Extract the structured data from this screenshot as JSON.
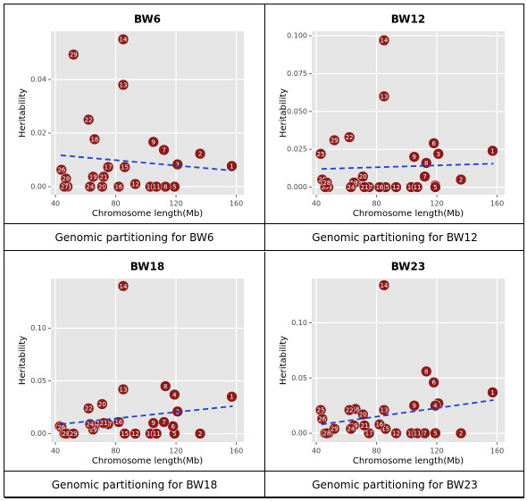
{
  "chart_data": [
    {
      "type": "scatter",
      "title": "BW6",
      "caption": "Genomic partitioning for BW6",
      "xlabel": "Chromosome length(Mb)",
      "ylabel": "Heritability",
      "color": "#8b1a1a",
      "trend_color": "#1f3fd6",
      "labels": [
        1,
        2,
        3,
        4,
        5,
        7,
        8,
        9,
        10,
        11,
        12,
        13,
        14,
        15,
        16,
        17,
        18,
        19,
        20,
        21,
        22,
        23,
        24,
        26,
        27,
        28,
        29
      ],
      "x": [
        157,
        136,
        121,
        119,
        119,
        112,
        113,
        105,
        103,
        107,
        93,
        85,
        85,
        86,
        82,
        75,
        66,
        65,
        71,
        72,
        62,
        48,
        63,
        44,
        46,
        47,
        52
      ],
      "y": [
        0.0077,
        0.0123,
        0.0083,
        0,
        0,
        0.0137,
        0,
        0.0167,
        0,
        0,
        0.001,
        0.038,
        0.055,
        0.0073,
        0,
        0.0073,
        0.0177,
        0.0037,
        0,
        0.0037,
        0.025,
        0,
        0,
        0.0063,
        0,
        0.003,
        0.0493
      ],
      "trend": {
        "x": [
          43.5,
          157.6
        ],
        "y": [
          0.0117,
          0.006
        ]
      },
      "xlim": [
        37,
        165
      ],
      "ylim": [
        -0.003,
        0.058
      ],
      "xticks": [
        40,
        80,
        120,
        160
      ],
      "yticks": [
        {
          "value": 0,
          "label": "0.00"
        },
        {
          "value": 0.02,
          "label": "0.02"
        },
        {
          "value": 0.04,
          "label": "0.04"
        }
      ]
    },
    {
      "type": "scatter",
      "title": "BW12",
      "caption": "Genomic partitioning for BW12",
      "xlabel": "Chromosome length(Mb)",
      "ylabel": "Heritability",
      "color": "#8b1a1a",
      "trend_color": "#1f3fd6",
      "labels": [
        1,
        2,
        3,
        4,
        5,
        6,
        7,
        8,
        9,
        10,
        11,
        12,
        13,
        14,
        15,
        16,
        17,
        18,
        19,
        20,
        21,
        22,
        23,
        24,
        25,
        26,
        27,
        28,
        29
      ],
      "x": [
        157,
        136,
        121,
        119,
        119,
        118,
        112,
        113,
        105,
        103,
        107,
        93,
        85,
        85,
        86,
        82,
        75,
        66,
        65,
        71,
        72,
        62,
        48,
        63,
        43,
        44,
        46,
        47,
        52
      ],
      "y": [
        0.024,
        0.005,
        0.022,
        0.001,
        0,
        0.029,
        0.007,
        0.016,
        0.02,
        0,
        0,
        0,
        0.06,
        0.097,
        0,
        0,
        0,
        0.003,
        0.003,
        0.007,
        0,
        0.033,
        0,
        0,
        0.022,
        0.005,
        0,
        0.003,
        0.031
      ],
      "trend": {
        "x": [
          43.5,
          157.6
        ],
        "y": [
          0.012,
          0.0155
        ]
      },
      "xlim": [
        37,
        165
      ],
      "ylim": [
        -0.005,
        0.103
      ],
      "xticks": [
        40,
        80,
        120,
        160
      ],
      "yticks": [
        {
          "value": 0,
          "label": "0.000"
        },
        {
          "value": 0.025,
          "label": "0.025"
        },
        {
          "value": 0.05,
          "label": "0.050"
        },
        {
          "value": 0.075,
          "label": "0.075"
        },
        {
          "value": 0.1,
          "label": "0.100"
        }
      ]
    },
    {
      "type": "scatter",
      "title": "BW18",
      "caption": "Genomic partitioning for BW18",
      "xlabel": "Chromosome length(Mb)",
      "ylabel": "Heritability",
      "color": "#8b1a1a",
      "trend_color": "#1f3fd6",
      "labels": [
        1,
        2,
        3,
        4,
        5,
        6,
        7,
        8,
        9,
        10,
        11,
        12,
        13,
        14,
        15,
        16,
        17,
        18,
        19,
        20,
        21,
        22,
        23,
        24,
        25,
        26,
        27,
        28,
        29
      ],
      "x": [
        157,
        136,
        121,
        119,
        119,
        118,
        112,
        113,
        105,
        103,
        107,
        93,
        85,
        85,
        86,
        82,
        75,
        66,
        65,
        71,
        72,
        62,
        48,
        63,
        43,
        44,
        46,
        47,
        52
      ],
      "y": [
        0.035,
        0,
        0.021,
        0.037,
        0,
        0.007,
        0.011,
        0.045,
        0.01,
        0,
        0,
        0,
        0.042,
        0.14,
        0,
        0.011,
        0.009,
        0.007,
        0.004,
        0.028,
        0.01,
        0.024,
        0,
        0.009,
        0.007,
        0.006,
        0,
        0,
        0
      ],
      "trend": {
        "x": [
          43.5,
          157.6
        ],
        "y": [
          0.009,
          0.026
        ]
      },
      "xlim": [
        37,
        165
      ],
      "ylim": [
        -0.008,
        0.147
      ],
      "xticks": [
        40,
        80,
        120,
        160
      ],
      "yticks": [
        {
          "value": 0,
          "label": "0.00"
        },
        {
          "value": 0.05,
          "label": "0.05"
        },
        {
          "value": 0.1,
          "label": "0.10"
        }
      ]
    },
    {
      "type": "scatter",
      "title": "BW23",
      "caption": "Genomic partitioning for BW23",
      "xlabel": "Chromosome length(Mb)",
      "ylabel": "Heritability",
      "color": "#8b1a1a",
      "trend_color": "#1f3fd6",
      "labels": [
        1,
        2,
        3,
        4,
        5,
        6,
        7,
        8,
        9,
        10,
        11,
        12,
        13,
        14,
        15,
        16,
        17,
        18,
        19,
        20,
        21,
        22,
        23,
        24,
        25,
        26,
        27,
        28,
        29
      ],
      "x": [
        157,
        136,
        121,
        119,
        119,
        118,
        112,
        113,
        105,
        103,
        107,
        93,
        85,
        85,
        86,
        82,
        75,
        66,
        65,
        71,
        72,
        62,
        48,
        63,
        43,
        44,
        46,
        47,
        52
      ],
      "y": [
        0.037,
        0,
        0.027,
        0.025,
        0,
        0.046,
        0,
        0.056,
        0.025,
        0,
        0,
        0,
        0.021,
        0.134,
        0.004,
        0.008,
        0,
        0.022,
        0.007,
        0.017,
        0.007,
        0.021,
        0,
        0.004,
        0.021,
        0.013,
        0,
        0,
        0.004
      ],
      "trend": {
        "x": [
          43.5,
          157.6
        ],
        "y": [
          0.008,
          0.03
        ]
      },
      "xlim": [
        37,
        165
      ],
      "ylim": [
        -0.008,
        0.14
      ],
      "xticks": [
        40,
        80,
        120,
        160
      ],
      "yticks": [
        {
          "value": 0,
          "label": "0.00"
        },
        {
          "value": 0.05,
          "label": "0.05"
        },
        {
          "value": 0.1,
          "label": "0.10"
        }
      ]
    }
  ]
}
